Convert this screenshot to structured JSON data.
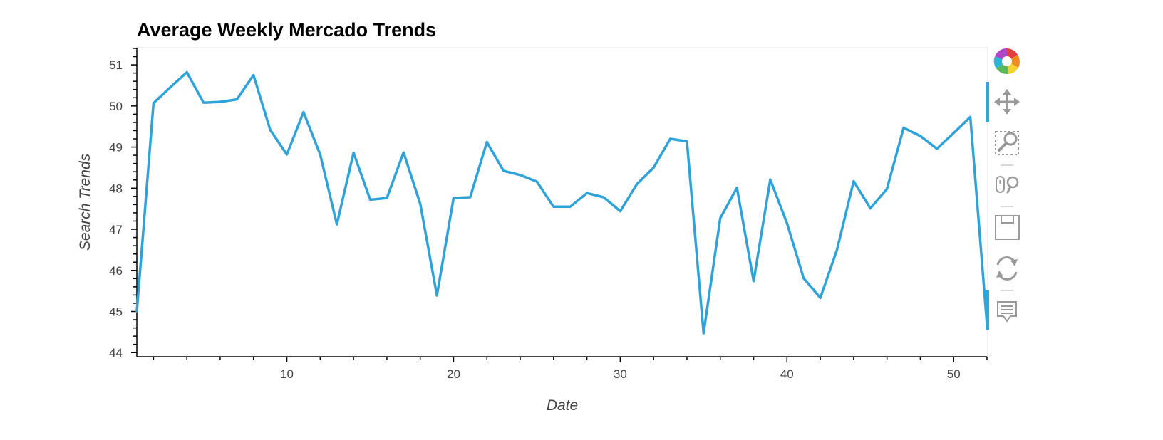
{
  "chart_data": {
    "type": "line",
    "title": "Average Weekly Mercado Trends",
    "xlabel": "Date",
    "ylabel": "Search Trends",
    "xlim": [
      1,
      52
    ],
    "ylim": [
      43.9,
      51.4
    ],
    "xticks": [
      10,
      20,
      30,
      40,
      50
    ],
    "yticks": [
      44,
      45,
      46,
      47,
      48,
      49,
      50,
      51
    ],
    "grid": false,
    "series": [
      {
        "color": "#30a2da",
        "x": [
          1,
          2,
          3,
          4,
          5,
          6,
          7,
          8,
          9,
          10,
          11,
          12,
          13,
          14,
          15,
          16,
          17,
          18,
          19,
          20,
          21,
          22,
          23,
          24,
          25,
          26,
          27,
          28,
          29,
          30,
          31,
          32,
          33,
          34,
          35,
          36,
          37,
          38,
          39,
          40,
          41,
          42,
          43,
          44,
          45,
          46,
          47,
          48,
          49,
          50,
          51,
          52
        ],
        "values": [
          45.0,
          50.07,
          50.45,
          50.82,
          50.08,
          50.1,
          50.16,
          50.75,
          49.42,
          48.82,
          49.85,
          48.82,
          47.12,
          48.86,
          47.72,
          47.76,
          48.87,
          47.62,
          45.39,
          47.76,
          47.78,
          49.12,
          48.42,
          48.32,
          48.16,
          47.55,
          47.55,
          47.88,
          47.78,
          47.44,
          48.1,
          48.5,
          49.2,
          49.14,
          44.47,
          47.27,
          48.01,
          45.74,
          48.21,
          47.15,
          45.81,
          45.33,
          46.5,
          48.17,
          47.51,
          47.98,
          49.47,
          49.27,
          48.96,
          49.34,
          49.73,
          44.68
        ]
      }
    ]
  },
  "toolbar": {
    "tools": [
      "bokeh-logo-icon",
      "pan-icon",
      "box-zoom-icon",
      "wheel-zoom-icon",
      "save-icon",
      "reset-icon",
      "hover-icon"
    ],
    "accent_color": "#26aae1"
  }
}
